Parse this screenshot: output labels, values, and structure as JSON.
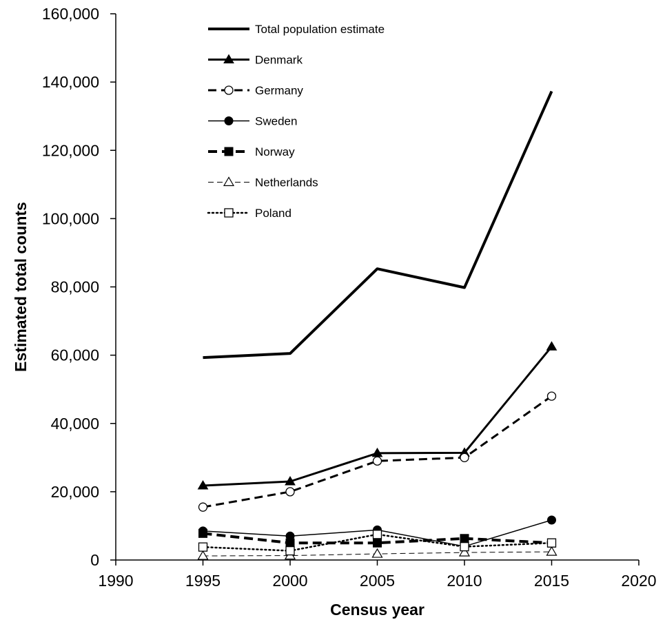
{
  "chart_data": {
    "type": "line",
    "xlabel": "Census year",
    "ylabel": "Estimated total counts",
    "xlim": [
      1990,
      2020
    ],
    "ylim": [
      0,
      160000
    ],
    "x_ticks": [
      1990,
      1995,
      2000,
      2005,
      2010,
      2015,
      2020
    ],
    "y_ticks": [
      0,
      20000,
      40000,
      60000,
      80000,
      100000,
      120000,
      140000,
      160000
    ],
    "y_tick_labels": [
      "0",
      "20,000",
      "40,000",
      "60,000",
      "80,000",
      "100,000",
      "120,000",
      "140,000",
      "160,000"
    ],
    "grid": false,
    "legend_position": "top-center",
    "x": [
      1995,
      2000,
      2005,
      2010,
      2015
    ],
    "series": [
      {
        "name": "Total population estimate",
        "values": [
          59300,
          60500,
          85300,
          79800,
          137300
        ],
        "line": "solid-thick",
        "marker": "none"
      },
      {
        "name": "Denmark",
        "values": [
          21800,
          23000,
          31300,
          31400,
          62500
        ],
        "line": "solid-medium",
        "marker": "triangle-filled"
      },
      {
        "name": "Germany",
        "values": [
          15500,
          20000,
          29000,
          30000,
          48000
        ],
        "line": "dashed-medium",
        "marker": "circle-open"
      },
      {
        "name": "Sweden",
        "values": [
          8500,
          7000,
          8800,
          4000,
          11700
        ],
        "line": "solid-thin",
        "marker": "circle-filled"
      },
      {
        "name": "Norway",
        "values": [
          7800,
          5000,
          5000,
          6300,
          5000
        ],
        "line": "dashed-thick",
        "marker": "square-filled"
      },
      {
        "name": "Netherlands",
        "values": [
          1200,
          1300,
          1800,
          2200,
          2400
        ],
        "line": "dashed-thin",
        "marker": "triangle-open"
      },
      {
        "name": "Poland",
        "values": [
          3800,
          2700,
          7500,
          3900,
          5000
        ],
        "line": "dotted",
        "marker": "square-open"
      }
    ]
  }
}
